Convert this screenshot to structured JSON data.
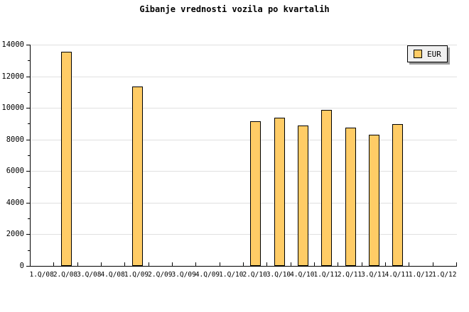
{
  "title": "Gibanje vrednosti vozila po kvartalih",
  "legend": {
    "label": "EUR"
  },
  "colors": {
    "background": "#FFFFFF",
    "bar_fill": "#FFCC66",
    "bar_border": "#000000",
    "gridline": "#E0E0E0",
    "axis": "#000000",
    "legend_bg": "#F0F0F0",
    "legend_shadow": "#999999"
  },
  "chart_data": {
    "type": "bar",
    "title": "Gibanje vrednosti vozila po kvartalih",
    "xlabel": "",
    "ylabel": "",
    "categories": [
      "1.Q/08",
      "2.Q/08",
      "3.Q/08",
      "4.Q/08",
      "1.Q/09",
      "2.Q/09",
      "3.Q/09",
      "4.Q/09",
      "1.Q/10",
      "2.Q/10",
      "3.Q/10",
      "4.Q/10",
      "1.Q/11",
      "2.Q/11",
      "3.Q/11",
      "4.Q/11",
      "1.Q/12",
      "1.Q/12"
    ],
    "series": [
      {
        "name": "EUR",
        "values": [
          null,
          13450,
          null,
          null,
          11250,
          null,
          null,
          null,
          null,
          9050,
          9300,
          8800,
          9800,
          8650,
          8200,
          8900,
          null,
          null
        ]
      }
    ],
    "ylim": [
      0,
      14000
    ],
    "y_major_step": 2000,
    "y_minor_step": 1000,
    "grid": true,
    "legend_position": "top-right"
  }
}
